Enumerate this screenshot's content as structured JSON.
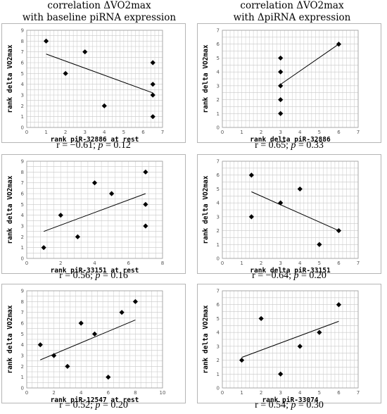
{
  "column_titles": [
    {
      "line1": "correlation ΔVO2max",
      "line2": "with baseline piRNA expression"
    },
    {
      "line1": "correlation ΔVO2max",
      "line2": "with ΔpiRNA expression"
    }
  ],
  "chart_data": [
    {
      "type": "scatter",
      "xlabel": "rank piR-32886 at rest",
      "ylabel": "rank delta VO2max",
      "xlim": [
        0,
        7
      ],
      "ylim": [
        0,
        9
      ],
      "xticks": [
        0,
        1,
        2,
        3,
        4,
        5,
        6,
        7
      ],
      "yticks": [
        0,
        1,
        2,
        3,
        4,
        5,
        6,
        7,
        8,
        9
      ],
      "points": [
        [
          1,
          8
        ],
        [
          2,
          5
        ],
        [
          3,
          7
        ],
        [
          4,
          2
        ],
        [
          6.5,
          6
        ],
        [
          6.5,
          4
        ],
        [
          6.5,
          3
        ],
        [
          6.5,
          1
        ]
      ],
      "trendline": [
        [
          1,
          6.8
        ],
        [
          6.5,
          3.2
        ]
      ],
      "stats": {
        "r_prefix": "r = −0.61; ",
        "p_label": "p",
        "p_suffix": " = 0.12"
      }
    },
    {
      "type": "scatter",
      "xlabel": "rank delta piR-32886",
      "ylabel": "rank delta VO2max",
      "xlim": [
        0,
        7
      ],
      "ylim": [
        0,
        7
      ],
      "xticks": [
        0,
        1,
        2,
        3,
        4,
        5,
        6,
        7
      ],
      "yticks": [
        0,
        1,
        2,
        3,
        4,
        5,
        6,
        7
      ],
      "points": [
        [
          3,
          5
        ],
        [
          3,
          4
        ],
        [
          3,
          3
        ],
        [
          3,
          2
        ],
        [
          3,
          1
        ],
        [
          6,
          6
        ]
      ],
      "trendline": [
        [
          3,
          3.1
        ],
        [
          6,
          6
        ]
      ],
      "stats": {
        "r_prefix": "r = 0.65; ",
        "p_label": "p",
        "p_suffix": " = 0.33"
      }
    },
    {
      "type": "scatter",
      "xlabel": "rank piR-33151 at rest",
      "ylabel": "rank delta VO2max",
      "xlim": [
        0,
        8
      ],
      "ylim": [
        0,
        9
      ],
      "xticks": [
        0,
        2,
        4,
        6,
        8
      ],
      "yticks": [
        0,
        1,
        2,
        3,
        4,
        5,
        6,
        7,
        8,
        9
      ],
      "points": [
        [
          1,
          1
        ],
        [
          2,
          4
        ],
        [
          3,
          2
        ],
        [
          4,
          7
        ],
        [
          5,
          6
        ],
        [
          7,
          8
        ],
        [
          7,
          5
        ],
        [
          7,
          3
        ]
      ],
      "trendline": [
        [
          1,
          2.5
        ],
        [
          7,
          6
        ]
      ],
      "stats": {
        "r_prefix": "r = 0.56; ",
        "p_label": "p",
        "p_suffix": " = 0.16"
      }
    },
    {
      "type": "scatter",
      "xlabel": "rank delta piR-33151",
      "ylabel": "rank delta VO2max",
      "xlim": [
        0,
        7
      ],
      "ylim": [
        0,
        7
      ],
      "xticks": [
        0,
        1,
        2,
        3,
        4,
        5,
        6,
        7
      ],
      "yticks": [
        0,
        1,
        2,
        3,
        4,
        5,
        6,
        7
      ],
      "points": [
        [
          1.5,
          6
        ],
        [
          1.5,
          3
        ],
        [
          3,
          4
        ],
        [
          4,
          5
        ],
        [
          5,
          1
        ],
        [
          6,
          2
        ]
      ],
      "trendline": [
        [
          1.5,
          4.8
        ],
        [
          6,
          2
        ]
      ],
      "stats": {
        "r_prefix": "r = −0.64; ",
        "p_label": "p",
        "p_suffix": " = 0.20"
      }
    },
    {
      "type": "scatter",
      "xlabel": "rank piR-12547 at rest",
      "ylabel": "rank delta VO2max",
      "xlim": [
        0,
        10
      ],
      "ylim": [
        0,
        9
      ],
      "xticks": [
        0,
        2,
        4,
        6,
        8,
        10
      ],
      "yticks": [
        0,
        1,
        2,
        3,
        4,
        5,
        6,
        7,
        8,
        9
      ],
      "points": [
        [
          1,
          4
        ],
        [
          2,
          3
        ],
        [
          3,
          2
        ],
        [
          4,
          6
        ],
        [
          5,
          5
        ],
        [
          6,
          1
        ],
        [
          7,
          7
        ],
        [
          8,
          8
        ]
      ],
      "trendline": [
        [
          1,
          2.6
        ],
        [
          8,
          6.3
        ]
      ],
      "stats": {
        "r_prefix": "r = 0.52; ",
        "p_label": "p",
        "p_suffix": " = 0.20"
      }
    },
    {
      "type": "scatter",
      "xlabel": "rank piR-33074",
      "ylabel": "rank delta VO2max",
      "xlim": [
        0,
        7
      ],
      "ylim": [
        0,
        7
      ],
      "xticks": [
        0,
        1,
        2,
        3,
        4,
        5,
        6,
        7
      ],
      "yticks": [
        0,
        1,
        2,
        3,
        4,
        5,
        6,
        7
      ],
      "points": [
        [
          1,
          2
        ],
        [
          2,
          5
        ],
        [
          3,
          1
        ],
        [
          4,
          3
        ],
        [
          5,
          4
        ],
        [
          6,
          6
        ]
      ],
      "trendline": [
        [
          1,
          2.2
        ],
        [
          6,
          4.8
        ]
      ],
      "stats": {
        "r_prefix": "r = 0.54; ",
        "p_label": "p",
        "p_suffix": " = 0.30"
      }
    }
  ]
}
